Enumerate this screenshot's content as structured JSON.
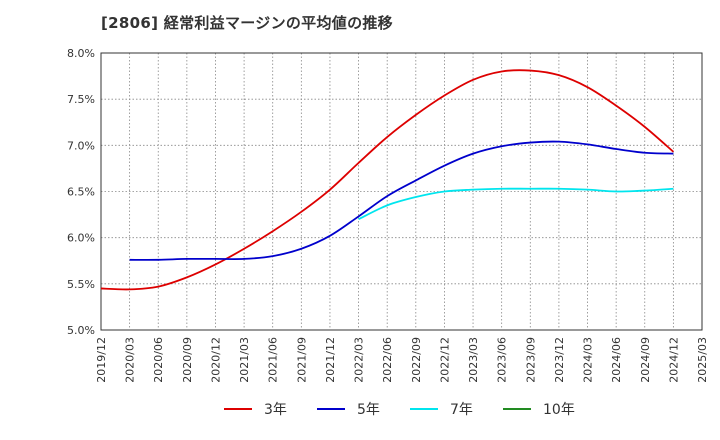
{
  "chart_data": {
    "type": "line",
    "title": "[2806]  経常利益マージンの平均値の推移",
    "xlabel": "",
    "ylabel": "",
    "x_ticks": [
      "2019/12",
      "2020/03",
      "2020/06",
      "2020/09",
      "2020/12",
      "2021/03",
      "2021/06",
      "2021/09",
      "2021/12",
      "2022/03",
      "2022/06",
      "2022/09",
      "2022/12",
      "2023/03",
      "2023/06",
      "2023/09",
      "2023/12",
      "2024/03",
      "2024/06",
      "2024/09",
      "2024/12",
      "2025/03"
    ],
    "y_ticks": [
      "5.0%",
      "5.5%",
      "6.0%",
      "6.5%",
      "7.0%",
      "7.5%",
      "8.0%"
    ],
    "ylim": [
      5.0,
      8.0
    ],
    "grid": true,
    "legend_position": "bottom",
    "series": [
      {
        "name": "3年",
        "color": "#dd0000",
        "x": [
          "2019/12",
          "2020/03",
          "2020/06",
          "2020/09",
          "2020/12",
          "2021/03",
          "2021/06",
          "2021/09",
          "2021/12",
          "2022/03",
          "2022/06",
          "2022/09",
          "2022/12",
          "2023/03",
          "2023/06",
          "2023/09",
          "2023/12",
          "2024/03",
          "2024/06",
          "2024/09",
          "2024/12"
        ],
        "values": [
          5.45,
          5.44,
          5.47,
          5.57,
          5.71,
          5.88,
          6.07,
          6.28,
          6.52,
          6.81,
          7.09,
          7.33,
          7.54,
          7.71,
          7.8,
          7.81,
          7.76,
          7.63,
          7.43,
          7.2,
          6.93
        ]
      },
      {
        "name": "5年",
        "color": "#0000cc",
        "x": [
          "2020/03",
          "2020/06",
          "2020/09",
          "2020/12",
          "2021/03",
          "2021/06",
          "2021/09",
          "2021/12",
          "2022/03",
          "2022/06",
          "2022/09",
          "2022/12",
          "2023/03",
          "2023/06",
          "2023/09",
          "2023/12",
          "2024/03",
          "2024/06",
          "2024/09",
          "2024/12"
        ],
        "values": [
          5.76,
          5.76,
          5.77,
          5.77,
          5.77,
          5.8,
          5.88,
          6.02,
          6.23,
          6.45,
          6.62,
          6.78,
          6.91,
          6.99,
          7.03,
          7.04,
          7.01,
          6.96,
          6.92,
          6.91
        ]
      },
      {
        "name": "7年",
        "color": "#00e5ee",
        "x": [
          "2022/03",
          "2022/06",
          "2022/09",
          "2022/12",
          "2023/03",
          "2023/06",
          "2023/09",
          "2023/12",
          "2024/03",
          "2024/06",
          "2024/09",
          "2024/12"
        ],
        "values": [
          6.2,
          6.35,
          6.44,
          6.5,
          6.52,
          6.53,
          6.53,
          6.53,
          6.52,
          6.5,
          6.51,
          6.53
        ]
      },
      {
        "name": "10年",
        "color": "#228b22",
        "x": [],
        "values": []
      }
    ]
  }
}
